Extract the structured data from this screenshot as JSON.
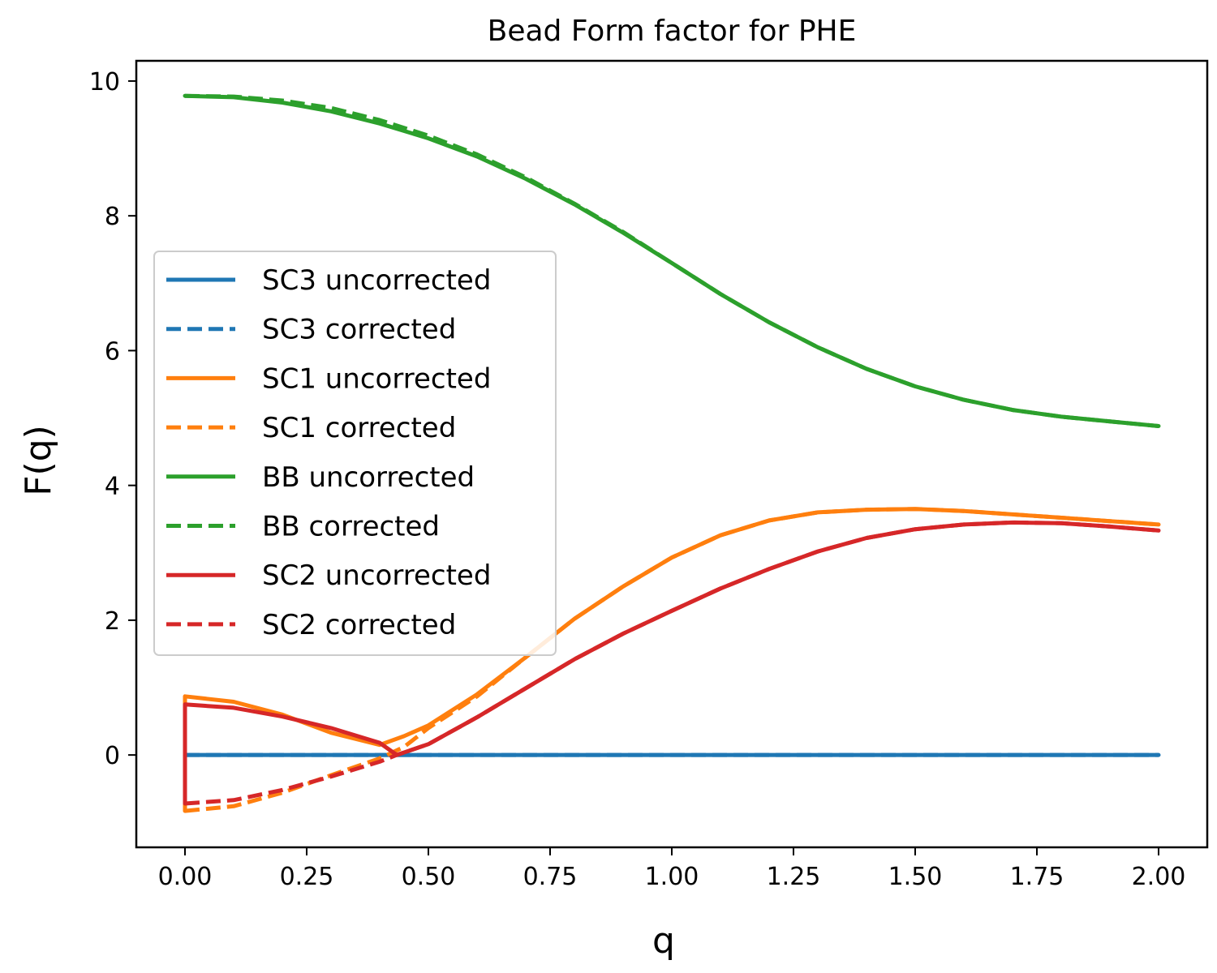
{
  "chart_data": {
    "type": "line",
    "title": "Bead Form factor for PHE",
    "xlabel": "q",
    "ylabel": "F(q)",
    "xlim": [
      -0.1,
      2.1
    ],
    "ylim": [
      -1.37,
      10.3
    ],
    "xticks": [
      "0.00",
      "0.25",
      "0.50",
      "0.75",
      "1.00",
      "1.25",
      "1.50",
      "1.75",
      "2.00"
    ],
    "yticks": [
      "0",
      "2",
      "4",
      "6",
      "8",
      "10"
    ],
    "grid": false,
    "legend_position": "center-left",
    "series": [
      {
        "name": "SC3 uncorrected",
        "color": "#1f77b4",
        "style": "solid",
        "x": [
          0.0,
          2.0
        ],
        "y": [
          0.0,
          0.0
        ]
      },
      {
        "name": "SC3 corrected",
        "color": "#1f77b4",
        "style": "dashed",
        "x": [
          0.0,
          2.0
        ],
        "y": [
          0.0,
          0.0
        ]
      },
      {
        "name": "SC1 uncorrected",
        "color": "#ff7f0e",
        "style": "solid",
        "x": [
          0.0,
          0.0,
          0.1,
          0.2,
          0.3,
          0.4,
          0.45,
          0.5,
          0.6,
          0.7,
          0.8,
          0.9,
          1.0,
          1.1,
          1.2,
          1.3,
          1.4,
          1.5,
          1.6,
          1.7,
          1.8,
          1.9,
          2.0
        ],
        "y": [
          -0.83,
          0.87,
          0.79,
          0.6,
          0.33,
          0.15,
          0.28,
          0.44,
          0.9,
          1.45,
          2.02,
          2.5,
          2.93,
          3.26,
          3.48,
          3.6,
          3.64,
          3.65,
          3.62,
          3.57,
          3.52,
          3.47,
          3.42
        ]
      },
      {
        "name": "SC1 corrected",
        "color": "#ff7f0e",
        "style": "dashed",
        "x": [
          0.0,
          0.1,
          0.2,
          0.3,
          0.4,
          0.45,
          0.5,
          0.6,
          0.7,
          0.8,
          0.9,
          1.0,
          1.1,
          1.2,
          1.3,
          1.4,
          1.5,
          1.6,
          1.7,
          1.8,
          1.9,
          2.0
        ],
        "y": [
          -0.83,
          -0.76,
          -0.56,
          -0.3,
          -0.05,
          0.12,
          0.4,
          0.87,
          1.45,
          2.02,
          2.5,
          2.93,
          3.26,
          3.48,
          3.6,
          3.64,
          3.65,
          3.62,
          3.57,
          3.52,
          3.47,
          3.42
        ]
      },
      {
        "name": "BB uncorrected",
        "color": "#2ca02c",
        "style": "solid",
        "x": [
          0.0,
          0.1,
          0.2,
          0.3,
          0.4,
          0.5,
          0.6,
          0.7,
          0.8,
          0.9,
          1.0,
          1.1,
          1.2,
          1.3,
          1.4,
          1.5,
          1.6,
          1.7,
          1.8,
          1.9,
          2.0
        ],
        "y": [
          9.78,
          9.76,
          9.68,
          9.55,
          9.37,
          9.15,
          8.88,
          8.55,
          8.17,
          7.75,
          7.3,
          6.84,
          6.42,
          6.05,
          5.73,
          5.47,
          5.27,
          5.12,
          5.02,
          4.95,
          4.88
        ]
      },
      {
        "name": "BB corrected",
        "color": "#2ca02c",
        "style": "dashed",
        "x": [
          0.0,
          0.1,
          0.2,
          0.3,
          0.4,
          0.5,
          0.6,
          0.7,
          0.8,
          0.9,
          1.0,
          1.1,
          1.2,
          1.3,
          1.4,
          1.5,
          1.6,
          1.7,
          1.8,
          1.9,
          2.0
        ],
        "y": [
          9.78,
          9.77,
          9.71,
          9.6,
          9.42,
          9.19,
          8.91,
          8.57,
          8.18,
          7.76,
          7.3,
          6.84,
          6.42,
          6.05,
          5.73,
          5.47,
          5.27,
          5.12,
          5.02,
          4.95,
          4.88
        ]
      },
      {
        "name": "SC2 uncorrected",
        "color": "#d62728",
        "style": "solid",
        "x": [
          0.0,
          0.0,
          0.1,
          0.2,
          0.3,
          0.4,
          0.435,
          0.5,
          0.6,
          0.7,
          0.8,
          0.9,
          1.0,
          1.1,
          1.2,
          1.3,
          1.4,
          1.5,
          1.6,
          1.7,
          1.8,
          1.9,
          2.0
        ],
        "y": [
          -0.72,
          0.75,
          0.7,
          0.57,
          0.4,
          0.18,
          0.0,
          0.16,
          0.56,
          0.99,
          1.42,
          1.8,
          2.14,
          2.47,
          2.76,
          3.02,
          3.22,
          3.35,
          3.42,
          3.45,
          3.44,
          3.39,
          3.33
        ]
      },
      {
        "name": "SC2 corrected",
        "color": "#d62728",
        "style": "dashed",
        "x": [
          0.0,
          0.1,
          0.2,
          0.3,
          0.4,
          0.435,
          0.5,
          0.6,
          0.7,
          0.8,
          0.9,
          1.0,
          1.1,
          1.2,
          1.3,
          1.4,
          1.5,
          1.6,
          1.7,
          1.8,
          1.9,
          2.0
        ],
        "y": [
          -0.72,
          -0.67,
          -0.52,
          -0.32,
          -0.1,
          0.0,
          0.16,
          0.56,
          0.99,
          1.42,
          1.8,
          2.14,
          2.47,
          2.76,
          3.02,
          3.22,
          3.35,
          3.42,
          3.45,
          3.44,
          3.39,
          3.33
        ]
      }
    ]
  }
}
